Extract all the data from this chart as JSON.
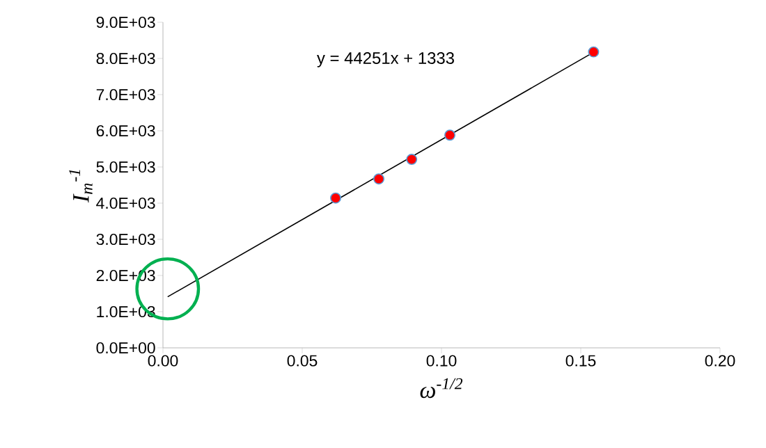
{
  "chart_data": {
    "type": "scatter",
    "xlabel": "ω$^{-1/2}$",
    "ylabel": "I$_{m}$$^{-1}$",
    "xlim": [
      0,
      0.2
    ],
    "ylim": [
      0,
      9000
    ],
    "xticks": [
      {
        "value": 0,
        "label": "0.00"
      },
      {
        "value": 0.05,
        "label": "0.05"
      },
      {
        "value": 0.1,
        "label": "0.10"
      },
      {
        "value": 0.15,
        "label": "0.15"
      },
      {
        "value": 0.2,
        "label": "0.20"
      }
    ],
    "yticks": [
      {
        "value": 0,
        "label": "0.0E+00"
      },
      {
        "value": 1000,
        "label": "1.0E+03"
      },
      {
        "value": 2000,
        "label": "2.0E+03"
      },
      {
        "value": 3000,
        "label": "3.0E+03"
      },
      {
        "value": 4000,
        "label": "4.0E+03"
      },
      {
        "value": 5000,
        "label": "5.0E+03"
      },
      {
        "value": 6000,
        "label": "6.0E+03"
      },
      {
        "value": 7000,
        "label": "7.0E+03"
      },
      {
        "value": 8000,
        "label": "8.0E+03"
      },
      {
        "value": 9000,
        "label": "9.0E+03"
      }
    ],
    "series": [
      {
        "color": "#ff0000",
        "marker": "circle",
        "x": [
          0.062,
          0.0775,
          0.0893,
          0.103,
          0.1546
        ],
        "values": [
          4140,
          4670,
          5210,
          5880,
          8180
        ]
      },
      {
        "type": "line",
        "color": "#000000",
        "marker": "none",
        "line_style": "solid",
        "x": [
          0.0017,
          0.1546
        ],
        "values": [
          1410,
          8170
        ]
      }
    ],
    "annotations": [
      "y = 44251x + 1333"
    ],
    "grid": false
  }
}
